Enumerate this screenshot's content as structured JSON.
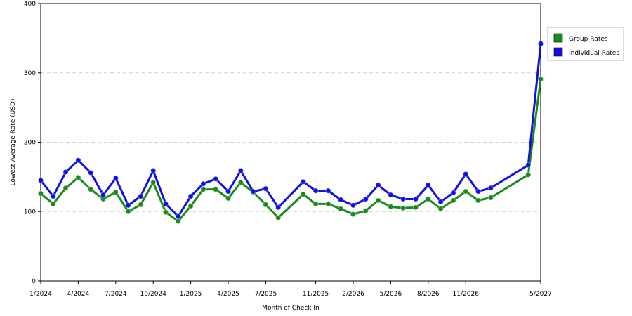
{
  "chart_data": {
    "type": "line",
    "xlabel": "Month of Check In",
    "ylabel": "Lowest Average Rate (USD)",
    "ylim": [
      0,
      400
    ],
    "yticks": [
      0,
      100,
      200,
      300,
      400
    ],
    "xtick_labels": [
      "1/2024",
      "4/2024",
      "7/2024",
      "10/2024",
      "1/2025",
      "4/2025",
      "7/2025",
      "11/2025",
      "2/2026",
      "5/2026",
      "8/2026",
      "11/2026",
      "5/2027"
    ],
    "x": [
      "1/2024",
      "2/2024",
      "3/2024",
      "4/2024",
      "5/2024",
      "6/2024",
      "7/2024",
      "8/2024",
      "9/2024",
      "10/2024",
      "11/2024",
      "12/2024",
      "1/2025",
      "2/2025",
      "3/2025",
      "4/2025",
      "5/2025",
      "6/2025",
      "7/2025",
      "8/2025",
      "10/2025",
      "11/2025",
      "12/2025",
      "1/2026",
      "2/2026",
      "3/2026",
      "4/2026",
      "5/2026",
      "6/2026",
      "7/2026",
      "8/2026",
      "9/2026",
      "10/2026",
      "11/2026",
      "12/2026",
      "1/2027",
      "4/2027",
      "5/2027"
    ],
    "series": [
      {
        "name": "Group Rates",
        "color": "#1a8a1a",
        "values": [
          126,
          111,
          134,
          149,
          132,
          118,
          128,
          100,
          110,
          142,
          99,
          86,
          108,
          132,
          132,
          119,
          142,
          128,
          110,
          91,
          125,
          111,
          111,
          104,
          96,
          101,
          116,
          107,
          105,
          106,
          118,
          104,
          116,
          129,
          116,
          120,
          153,
          291
        ]
      },
      {
        "name": "Individual Rates",
        "color": "#1010e0",
        "values": [
          145,
          122,
          157,
          174,
          156,
          124,
          148,
          109,
          122,
          159,
          111,
          93,
          122,
          140,
          147,
          129,
          159,
          129,
          133,
          106,
          143,
          130,
          130,
          117,
          109,
          118,
          138,
          124,
          118,
          118,
          138,
          114,
          127,
          154,
          129,
          134,
          167,
          342
        ]
      }
    ],
    "grid": true,
    "legend_position": "right"
  }
}
